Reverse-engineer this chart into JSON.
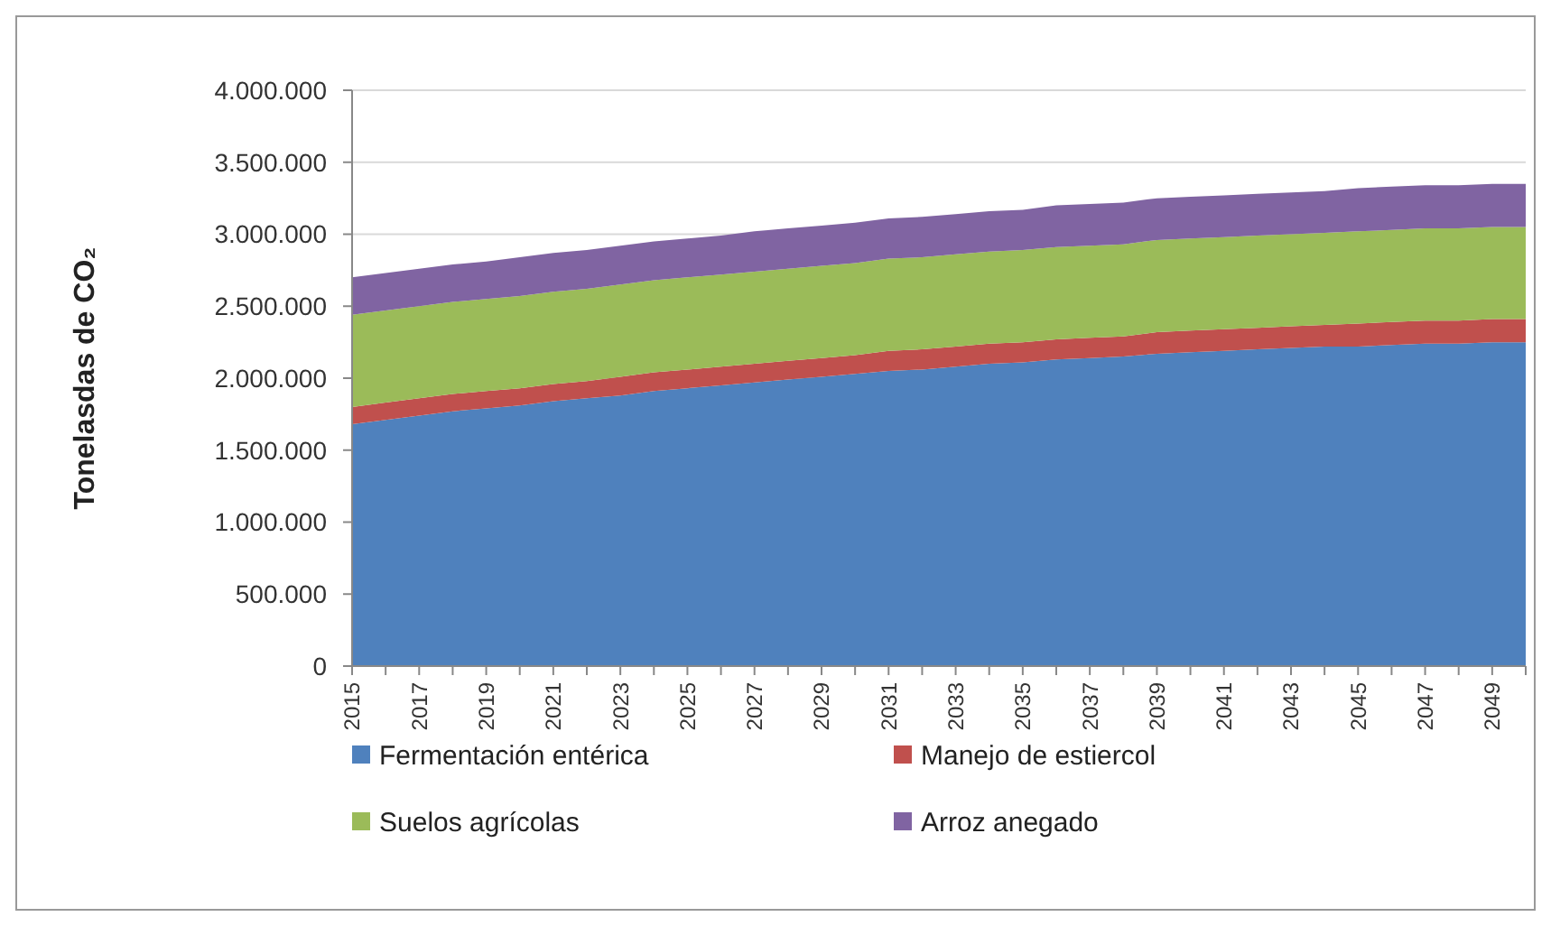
{
  "chart_data": {
    "type": "area",
    "stacked": true,
    "ylabel": "Tonelasdas de CO₂",
    "categories": [
      "2015",
      null,
      "2017",
      null,
      "2019",
      null,
      "2021",
      null,
      "2023",
      null,
      "2025",
      null,
      "2027",
      null,
      "2029",
      null,
      "2031",
      null,
      "2033",
      null,
      "2035",
      null,
      "2037",
      null,
      "2039",
      null,
      "2041",
      null,
      "2043",
      null,
      "2045",
      null,
      "2047",
      null,
      "2049",
      null
    ],
    "series": [
      {
        "name": "Fermentación entérica",
        "color": "#4f81bd",
        "values": [
          1680000,
          1710000,
          1740000,
          1770000,
          1790000,
          1810000,
          1840000,
          1860000,
          1880000,
          1910000,
          1930000,
          1950000,
          1970000,
          1990000,
          2010000,
          2030000,
          2050000,
          2060000,
          2080000,
          2100000,
          2110000,
          2130000,
          2140000,
          2150000,
          2170000,
          2180000,
          2190000,
          2200000,
          2210000,
          2220000,
          2220000,
          2230000,
          2240000,
          2240000,
          2250000,
          2250000
        ]
      },
      {
        "name": "Manejo de estiercol",
        "color": "#c0504d",
        "values": [
          120000,
          120000,
          120000,
          120000,
          120000,
          120000,
          120000,
          120000,
          130000,
          130000,
          130000,
          130000,
          130000,
          130000,
          130000,
          130000,
          140000,
          140000,
          140000,
          140000,
          140000,
          140000,
          140000,
          140000,
          150000,
          150000,
          150000,
          150000,
          150000,
          150000,
          160000,
          160000,
          160000,
          160000,
          160000,
          160000
        ]
      },
      {
        "name": "Suelos agrícolas",
        "color": "#9bbb59",
        "values": [
          640000,
          640000,
          640000,
          640000,
          640000,
          640000,
          640000,
          640000,
          640000,
          640000,
          640000,
          640000,
          640000,
          640000,
          640000,
          640000,
          640000,
          640000,
          640000,
          640000,
          640000,
          640000,
          640000,
          640000,
          640000,
          640000,
          640000,
          640000,
          640000,
          640000,
          640000,
          640000,
          640000,
          640000,
          640000,
          640000
        ]
      },
      {
        "name": "Arroz anegado",
        "color": "#8064a2",
        "values": [
          260000,
          260000,
          260000,
          260000,
          260000,
          270000,
          270000,
          270000,
          270000,
          270000,
          270000,
          270000,
          280000,
          280000,
          280000,
          280000,
          280000,
          280000,
          280000,
          280000,
          280000,
          290000,
          290000,
          290000,
          290000,
          290000,
          290000,
          290000,
          290000,
          290000,
          300000,
          300000,
          300000,
          300000,
          300000,
          300000
        ]
      }
    ],
    "ylim": [
      0,
      4000000
    ],
    "yticks": [
      {
        "value": 0,
        "label": "0"
      },
      {
        "value": 500000,
        "label": "500.000"
      },
      {
        "value": 1000000,
        "label": "1.000.000"
      },
      {
        "value": 1500000,
        "label": "1.500.000"
      },
      {
        "value": 2000000,
        "label": "2.000.000"
      },
      {
        "value": 2500000,
        "label": "2.500.000"
      },
      {
        "value": 3000000,
        "label": "3.000.000"
      },
      {
        "value": 3500000,
        "label": "3.500.000"
      },
      {
        "value": 4000000,
        "label": "4.000.000"
      }
    ],
    "grid": "y",
    "legend": "bottom"
  }
}
